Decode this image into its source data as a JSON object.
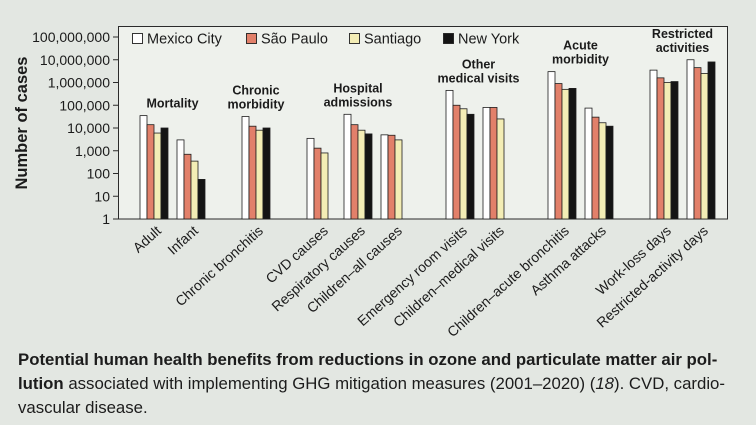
{
  "chart_data": {
    "type": "bar",
    "ylabel": "Number of cases",
    "yscale": "log",
    "ylim": [
      1,
      100000000
    ],
    "yticks": [
      1,
      10,
      100,
      1000,
      10000,
      100000,
      1000000,
      10000000,
      100000000
    ],
    "ytick_labels": [
      "1",
      "10",
      "100",
      "1,000",
      "10,000",
      "100,000",
      "1,000,000",
      "10,000,000",
      "100,000,000"
    ],
    "grid": false,
    "legend_position": "top-left",
    "categories": [
      "Adult",
      "Infant",
      "Chronic bronchitis",
      "CVD causes",
      "Respiratory causes",
      "Children–all causes",
      "Emergency room visits",
      "Children–medical visits",
      "Children–acute bronchitis",
      "Asthma attacks",
      "Work-loss days",
      "Restricted-activity days"
    ],
    "groups": [
      {
        "label_lines": [
          "Mortality"
        ],
        "category_indices": [
          0,
          1
        ]
      },
      {
        "label_lines": [
          "Chronic",
          "morbidity"
        ],
        "category_indices": [
          2
        ]
      },
      {
        "label_lines": [
          "Hospital",
          "admissions"
        ],
        "category_indices": [
          3,
          4,
          5
        ]
      },
      {
        "label_lines": [
          "Other",
          "medical visits"
        ],
        "category_indices": [
          6,
          7
        ]
      },
      {
        "label_lines": [
          "Acute",
          "morbidity"
        ],
        "category_indices": [
          8,
          9
        ]
      },
      {
        "label_lines": [
          "Restricted",
          "activities"
        ],
        "category_indices": [
          10,
          11
        ]
      }
    ],
    "series": [
      {
        "name": "Mexico City",
        "color": "#ffffff",
        "values": [
          35000,
          3000,
          32000,
          3500,
          40000,
          5000,
          450000,
          80000,
          3000000,
          75000,
          3500000,
          10000000
        ]
      },
      {
        "name": "São Paulo",
        "color": "#e2806a",
        "values": [
          14000,
          700,
          12000,
          1300,
          14000,
          4800,
          100000,
          80000,
          900000,
          30000,
          1600000,
          4500000
        ]
      },
      {
        "name": "Santiago",
        "color": "#f3edb5",
        "values": [
          6000,
          350,
          8000,
          800,
          8000,
          3000,
          70000,
          25000,
          500000,
          17000,
          1000000,
          2500000
        ]
      },
      {
        "name": "New York",
        "color": "#141414",
        "values": [
          10000,
          55,
          10000,
          null,
          5500,
          null,
          40000,
          null,
          550000,
          12000,
          1100000,
          8000000
        ]
      }
    ]
  },
  "caption": {
    "lead_bold_1": "Potential human health benefits from reductions in ozone and particulate matter air pol-",
    "lead_bold_2": "lution",
    "text_1": " associated with implementing GHG mitigation measures (2001–2020) (",
    "ref": "18",
    "text_2": "). CVD, cardio-",
    "text_3": "vascular disease."
  },
  "colors": {
    "page_background": "#e3e7e2",
    "plot_background": "#eef1ec",
    "axis": "#2b2b2b",
    "bar_outline": "#1e1e1e"
  }
}
